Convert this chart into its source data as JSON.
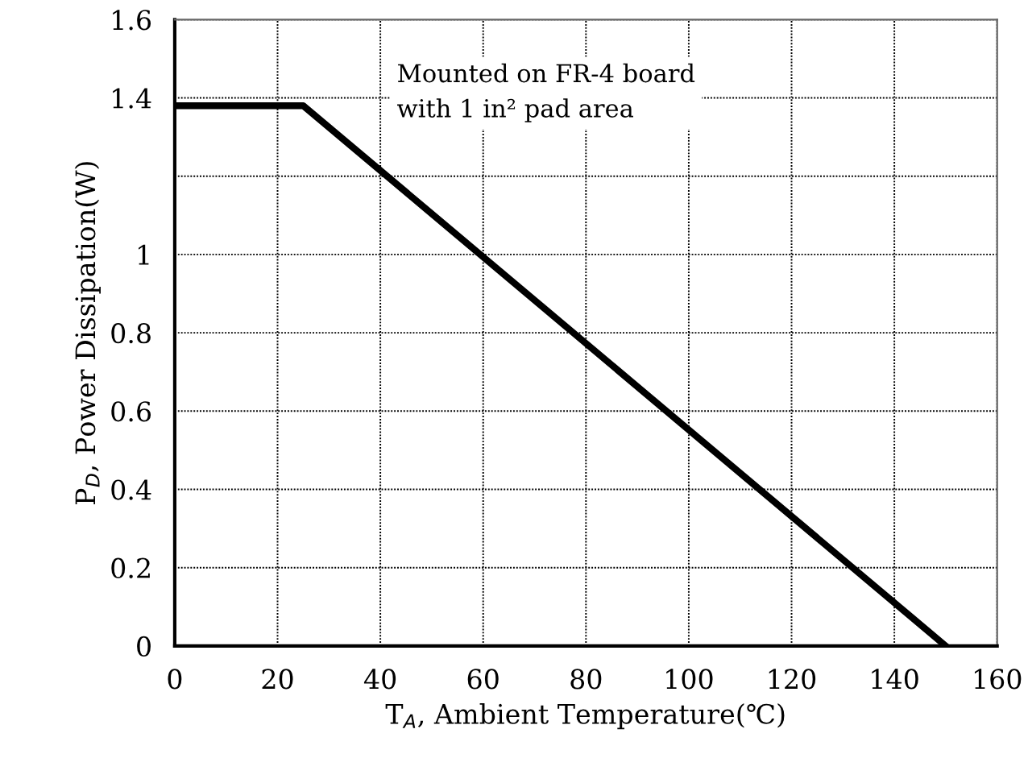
{
  "chart_data": {
    "type": "line",
    "xlabel": "T$_{A}$, Ambient Temperature(℃)",
    "ylabel": "P$_{D}$, Power Dissipation(W)",
    "x": [
      0,
      25,
      150
    ],
    "series": [
      {
        "color": "#000000",
        "values": [
          1.38,
          1.38,
          0
        ]
      }
    ],
    "xlim": [
      0,
      160
    ],
    "xticks": [
      0,
      20,
      40,
      60,
      80,
      100,
      120,
      140,
      160
    ],
    "ylim": [
      0,
      1.6
    ],
    "yticks": [
      0,
      0.2,
      0.4,
      0.6,
      0.8,
      1,
      {
        "value": 1.2,
        "label": null
      },
      1.4,
      1.6
    ],
    "grid": true,
    "line_style": "solid",
    "marker": "none",
    "annotations": [
      "Mounted on FR-4 board\nwith 1 in² pad area"
    ]
  }
}
